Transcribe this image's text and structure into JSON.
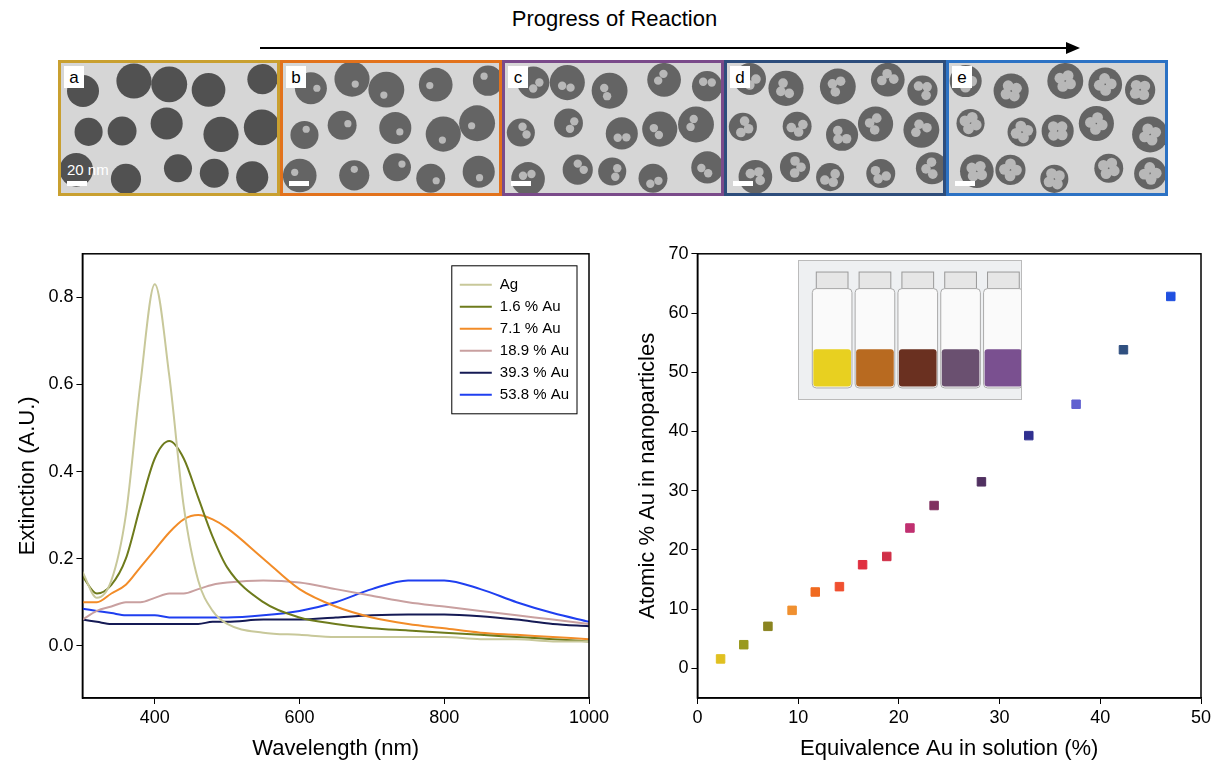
{
  "figure": {
    "title": "Progress of Reaction",
    "panels": [
      "a",
      "b",
      "c",
      "d",
      "e"
    ],
    "scale_bar": "20 nm"
  },
  "chart_data": [
    {
      "type": "line",
      "x_label": "Wavelength (nm)",
      "y_label": "Extinction (A.U.)",
      "x": [
        300,
        320,
        340,
        360,
        380,
        400,
        420,
        440,
        460,
        480,
        500,
        550,
        600,
        650,
        700,
        750,
        800,
        850,
        900,
        950,
        1000
      ],
      "series": [
        {
          "name": "Ag",
          "color": "#c8c89a",
          "values": [
            0.17,
            0.11,
            0.15,
            0.3,
            0.6,
            0.83,
            0.62,
            0.32,
            0.15,
            0.08,
            0.05,
            0.03,
            0.025,
            0.02,
            0.02,
            0.02,
            0.02,
            0.015,
            0.015,
            0.01,
            0.01
          ]
        },
        {
          "name": "1.6 % Au",
          "color": "#6e7b1c",
          "values": [
            0.16,
            0.12,
            0.14,
            0.2,
            0.32,
            0.43,
            0.47,
            0.43,
            0.34,
            0.25,
            0.18,
            0.1,
            0.065,
            0.05,
            0.04,
            0.035,
            0.03,
            0.025,
            0.02,
            0.015,
            0.01
          ]
        },
        {
          "name": "7.1 % Au",
          "color": "#f28c28",
          "values": [
            0.1,
            0.1,
            0.12,
            0.14,
            0.18,
            0.22,
            0.26,
            0.29,
            0.3,
            0.29,
            0.27,
            0.2,
            0.13,
            0.09,
            0.065,
            0.05,
            0.04,
            0.03,
            0.025,
            0.02,
            0.015
          ]
        },
        {
          "name": "18.9 % Au",
          "color": "#c9a0a0",
          "values": [
            0.06,
            0.08,
            0.09,
            0.1,
            0.1,
            0.11,
            0.12,
            0.12,
            0.13,
            0.14,
            0.145,
            0.15,
            0.145,
            0.13,
            0.115,
            0.1,
            0.09,
            0.08,
            0.07,
            0.06,
            0.05
          ]
        },
        {
          "name": "39.3 % Au",
          "color": "#151a55",
          "values": [
            0.06,
            0.055,
            0.05,
            0.05,
            0.05,
            0.05,
            0.05,
            0.05,
            0.05,
            0.055,
            0.055,
            0.06,
            0.06,
            0.065,
            0.07,
            0.072,
            0.072,
            0.068,
            0.06,
            0.05,
            0.045
          ]
        },
        {
          "name": "53.8 % Au",
          "color": "#1f3ff0",
          "values": [
            0.085,
            0.08,
            0.075,
            0.07,
            0.07,
            0.07,
            0.065,
            0.065,
            0.065,
            0.065,
            0.065,
            0.07,
            0.08,
            0.1,
            0.13,
            0.15,
            0.15,
            0.13,
            0.1,
            0.075,
            0.055
          ]
        }
      ],
      "xlim": [
        300,
        1000
      ],
      "xticks": [
        400,
        600,
        800,
        1000
      ],
      "ylim": [
        -0.12,
        0.9
      ],
      "yticks": [
        {
          "value": 0,
          "label": "0.0"
        },
        0.2,
        0.4,
        0.6,
        0.8
      ],
      "grid": false,
      "legend": "upper right"
    },
    {
      "type": "scatter",
      "x_label": "Equivalence Au in solution (%)",
      "y_label": "Atomic % Au in nanoparticles",
      "x": [
        2.3,
        4.6,
        7.0,
        9.4,
        11.7,
        14.1,
        16.4,
        18.8,
        21.1,
        23.5,
        28.2,
        32.9,
        37.6,
        42.3,
        47.0
      ],
      "values": [
        1.6,
        4.0,
        7.1,
        9.8,
        12.9,
        13.8,
        17.5,
        18.9,
        23.7,
        27.5,
        31.5,
        39.3,
        44.6,
        53.8,
        62.8
      ],
      "colors": [
        "#e0c020",
        "#9a9a20",
        "#8a8420",
        "#f09030",
        "#f06a20",
        "#f05030",
        "#e03040",
        "#d03048",
        "#c03070",
        "#803060",
        "#503060",
        "#303090",
        "#6060d0",
        "#305080",
        "#2050e0"
      ],
      "marker": "square",
      "xlim": [
        0,
        50
      ],
      "xticks": [
        0,
        10,
        20,
        30,
        40,
        50
      ],
      "ylim": [
        -5,
        70
      ],
      "yticks": [
        0,
        10,
        20,
        30,
        40,
        50,
        60,
        70
      ],
      "grid": false
    }
  ]
}
